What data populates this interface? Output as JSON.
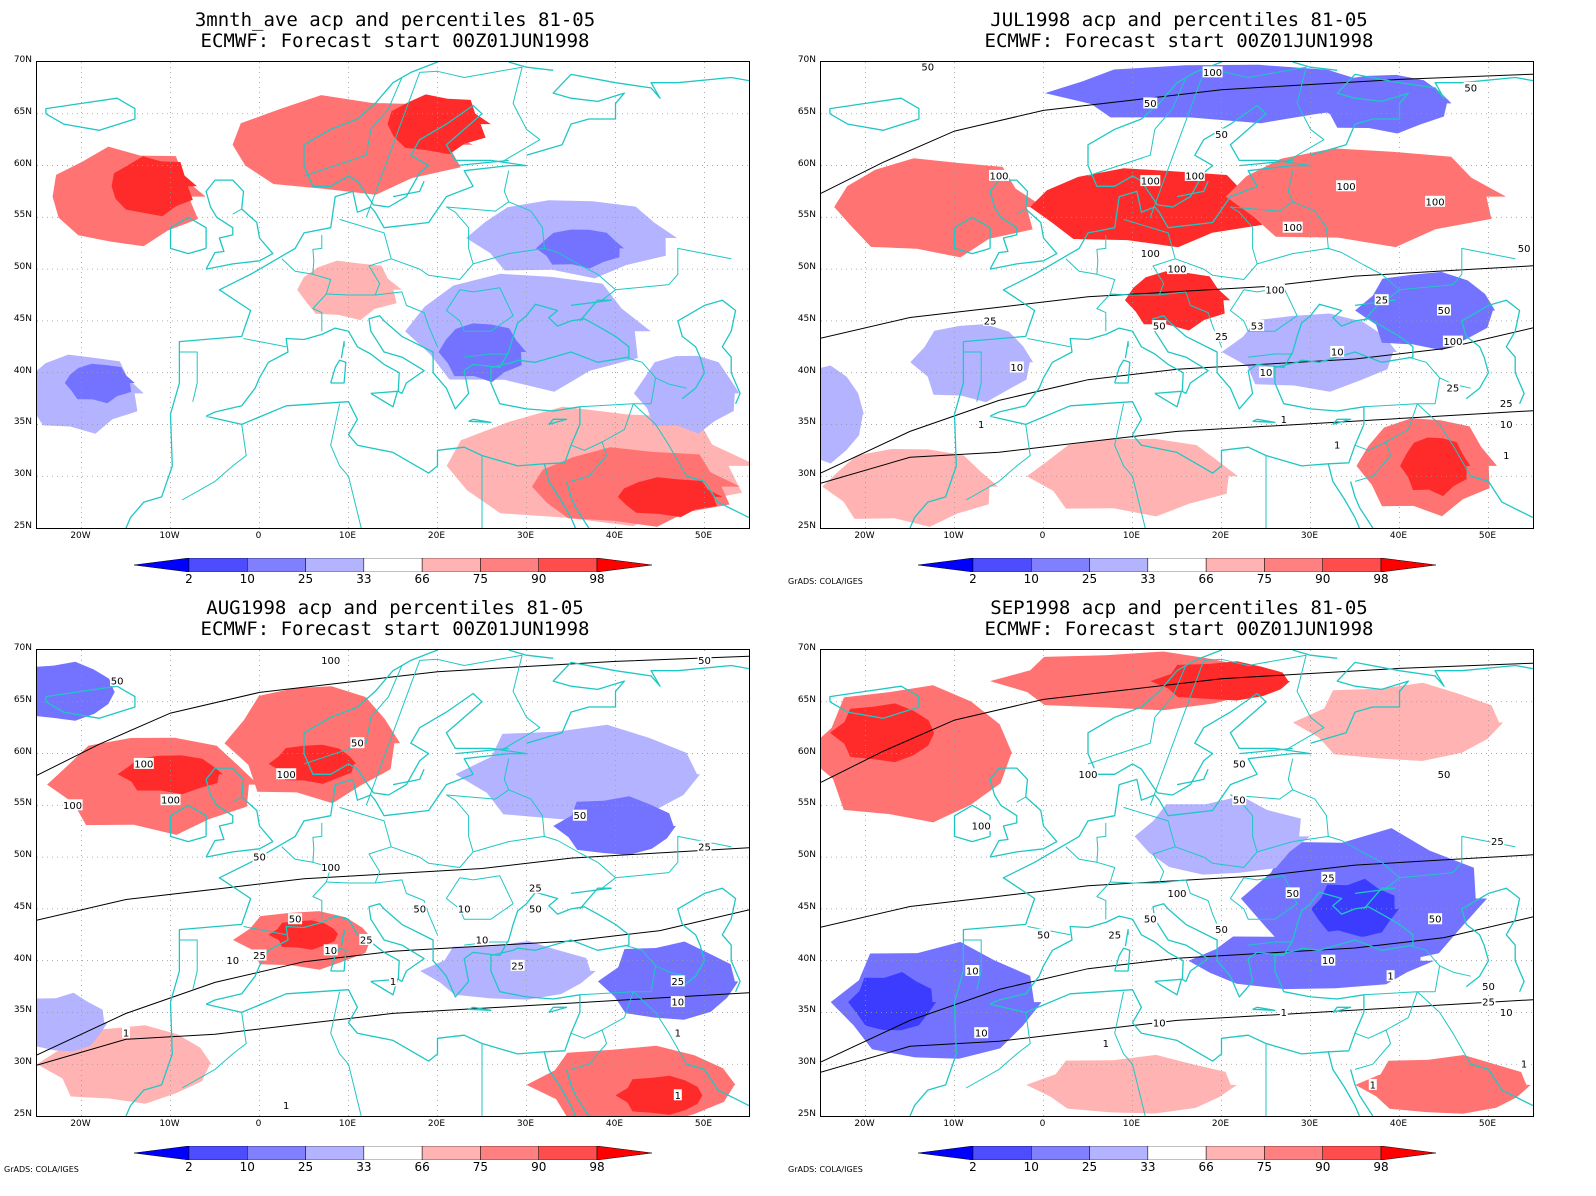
{
  "panels": [
    {
      "title_line1": "3mnth_ave acp and percentiles 81-05",
      "title_line2": "ECMWF: Forecast start 00Z01JUN1998",
      "credit": "",
      "contour_labels": [],
      "anomaly_regions": [
        {
          "category": "above",
          "level": 2,
          "lon": -15,
          "lat": 57,
          "rx": 9,
          "ry": 5
        },
        {
          "category": "above",
          "level": 3,
          "lon": -12,
          "lat": 58,
          "rx": 5,
          "ry": 3
        },
        {
          "category": "above",
          "level": 2,
          "lon": 10,
          "lat": 62,
          "rx": 14,
          "ry": 5
        },
        {
          "category": "above",
          "level": 3,
          "lon": 20,
          "lat": 64,
          "rx": 6,
          "ry": 3
        },
        {
          "category": "above",
          "level": 1,
          "lon": 38,
          "lat": 31,
          "rx": 18,
          "ry": 6
        },
        {
          "category": "above",
          "level": 2,
          "lon": 42,
          "lat": 29,
          "rx": 12,
          "ry": 4
        },
        {
          "category": "above",
          "level": 3,
          "lon": 46,
          "lat": 28,
          "rx": 6,
          "ry": 2
        },
        {
          "category": "above",
          "level": 1,
          "lon": 10,
          "lat": 48,
          "rx": 6,
          "ry": 3
        },
        {
          "category": "below",
          "level": 1,
          "lon": -20,
          "lat": 38,
          "rx": 7,
          "ry": 4
        },
        {
          "category": "below",
          "level": 2,
          "lon": -18,
          "lat": 39,
          "rx": 4,
          "ry": 2
        },
        {
          "category": "below",
          "level": 1,
          "lon": 30,
          "lat": 44,
          "rx": 14,
          "ry": 6
        },
        {
          "category": "below",
          "level": 2,
          "lon": 25,
          "lat": 42,
          "rx": 5,
          "ry": 3
        },
        {
          "category": "below",
          "level": 1,
          "lon": 35,
          "lat": 53,
          "rx": 12,
          "ry": 4
        },
        {
          "category": "below",
          "level": 2,
          "lon": 36,
          "lat": 52,
          "rx": 5,
          "ry": 2
        },
        {
          "category": "below",
          "level": 1,
          "lon": 48,
          "lat": 38,
          "rx": 6,
          "ry": 4
        }
      ]
    },
    {
      "title_line1": "JUL1998 acp and percentiles 81-05",
      "title_line2": "ECMWF: Forecast start 00Z01JUN1998",
      "credit": "GrADS: COLA/IGES",
      "contour_labels": [
        {
          "text": "50",
          "lon": -13,
          "lat": 69.5
        },
        {
          "text": "100",
          "lon": 19,
          "lat": 69
        },
        {
          "text": "50",
          "lon": 12,
          "lat": 66
        },
        {
          "text": "50",
          "lon": 48,
          "lat": 67.5
        },
        {
          "text": "50",
          "lon": 20,
          "lat": 63
        },
        {
          "text": "100",
          "lon": -5,
          "lat": 59
        },
        {
          "text": "100",
          "lon": 12,
          "lat": 58.5
        },
        {
          "text": "100",
          "lon": 17,
          "lat": 59
        },
        {
          "text": "100",
          "lon": 34,
          "lat": 58
        },
        {
          "text": "100",
          "lon": 44,
          "lat": 56.5
        },
        {
          "text": "100",
          "lon": 28,
          "lat": 54
        },
        {
          "text": "100",
          "lon": 12,
          "lat": 51.5
        },
        {
          "text": "100",
          "lon": 15,
          "lat": 50
        },
        {
          "text": "100",
          "lon": 26,
          "lat": 48
        },
        {
          "text": "50",
          "lon": 54,
          "lat": 52
        },
        {
          "text": "25",
          "lon": -6,
          "lat": 45
        },
        {
          "text": "50",
          "lon": 13,
          "lat": 44.5
        },
        {
          "text": "53",
          "lon": 24,
          "lat": 44.5
        },
        {
          "text": "25",
          "lon": 38,
          "lat": 47
        },
        {
          "text": "50",
          "lon": 45,
          "lat": 46
        },
        {
          "text": "25",
          "lon": 20,
          "lat": 43.5
        },
        {
          "text": "10",
          "lon": -3,
          "lat": 40.5
        },
        {
          "text": "100",
          "lon": 46,
          "lat": 43
        },
        {
          "text": "10",
          "lon": 33,
          "lat": 42
        },
        {
          "text": "10",
          "lon": 25,
          "lat": 40
        },
        {
          "text": "25",
          "lon": 46,
          "lat": 38.5
        },
        {
          "text": "25",
          "lon": 52,
          "lat": 37
        },
        {
          "text": "10",
          "lon": 52,
          "lat": 35
        },
        {
          "text": "1",
          "lon": -7,
          "lat": 35
        },
        {
          "text": "1",
          "lon": 27,
          "lat": 35.5
        },
        {
          "text": "1",
          "lon": 33,
          "lat": 33
        },
        {
          "text": "1",
          "lon": 52,
          "lat": 32
        }
      ],
      "anomaly_regions": [
        {
          "category": "above",
          "level": 2,
          "lon": -12,
          "lat": 56,
          "rx": 12,
          "ry": 5
        },
        {
          "category": "above",
          "level": 3,
          "lon": 12,
          "lat": 56,
          "rx": 14,
          "ry": 4
        },
        {
          "category": "above",
          "level": 2,
          "lon": 36,
          "lat": 57,
          "rx": 16,
          "ry": 5
        },
        {
          "category": "above",
          "level": 3,
          "lon": 15,
          "lat": 47,
          "rx": 6,
          "ry": 3
        },
        {
          "category": "above",
          "level": 2,
          "lon": 43,
          "lat": 31,
          "rx": 8,
          "ry": 5
        },
        {
          "category": "above",
          "level": 3,
          "lon": 44,
          "lat": 31,
          "rx": 4,
          "ry": 3
        },
        {
          "category": "above",
          "level": 1,
          "lon": -15,
          "lat": 29,
          "rx": 10,
          "ry": 4
        },
        {
          "category": "above",
          "level": 1,
          "lon": 10,
          "lat": 30,
          "rx": 12,
          "ry": 4
        },
        {
          "category": "below",
          "level": 2,
          "lon": 20,
          "lat": 67,
          "rx": 20,
          "ry": 3
        },
        {
          "category": "below",
          "level": 2,
          "lon": 38,
          "lat": 66,
          "rx": 8,
          "ry": 3
        },
        {
          "category": "below",
          "level": 1,
          "lon": -8,
          "lat": 41,
          "rx": 7,
          "ry": 4
        },
        {
          "category": "below",
          "level": 1,
          "lon": 30,
          "lat": 42,
          "rx": 10,
          "ry": 4
        },
        {
          "category": "below",
          "level": 2,
          "lon": 43,
          "lat": 46,
          "rx": 8,
          "ry": 4
        },
        {
          "category": "below",
          "level": 1,
          "lon": -25,
          "lat": 36,
          "rx": 5,
          "ry": 5
        }
      ]
    },
    {
      "title_line1": "AUG1998 acp and percentiles 81-05",
      "title_line2": "ECMWF: Forecast start 00Z01JUN1998",
      "credit": "GrADS: COLA/IGES",
      "contour_labels": [
        {
          "text": "50",
          "lon": -16,
          "lat": 67
        },
        {
          "text": "100",
          "lon": 8,
          "lat": 69
        },
        {
          "text": "50",
          "lon": 50,
          "lat": 69
        },
        {
          "text": "50",
          "lon": 11,
          "lat": 61
        },
        {
          "text": "100",
          "lon": -13,
          "lat": 59
        },
        {
          "text": "100",
          "lon": 3,
          "lat": 58
        },
        {
          "text": "100",
          "lon": -21,
          "lat": 55
        },
        {
          "text": "100",
          "lon": -10,
          "lat": 55.5
        },
        {
          "text": "50",
          "lon": 36,
          "lat": 54
        },
        {
          "text": "25",
          "lon": 50,
          "lat": 51
        },
        {
          "text": "50",
          "lon": 0,
          "lat": 50
        },
        {
          "text": "100",
          "lon": 8,
          "lat": 49
        },
        {
          "text": "25",
          "lon": 31,
          "lat": 47
        },
        {
          "text": "50",
          "lon": 18,
          "lat": 45
        },
        {
          "text": "10",
          "lon": 23,
          "lat": 45
        },
        {
          "text": "50",
          "lon": 31,
          "lat": 45
        },
        {
          "text": "50",
          "lon": 4,
          "lat": 44
        },
        {
          "text": "10",
          "lon": 25,
          "lat": 42
        },
        {
          "text": "25",
          "lon": 12,
          "lat": 42
        },
        {
          "text": "10",
          "lon": -3,
          "lat": 40
        },
        {
          "text": "25",
          "lon": 0,
          "lat": 40.5
        },
        {
          "text": "10",
          "lon": 8,
          "lat": 41
        },
        {
          "text": "25",
          "lon": 29,
          "lat": 39.5
        },
        {
          "text": "1",
          "lon": 15,
          "lat": 38
        },
        {
          "text": "25",
          "lon": 47,
          "lat": 38
        },
        {
          "text": "10",
          "lon": 47,
          "lat": 36
        },
        {
          "text": "1",
          "lon": -15,
          "lat": 33
        },
        {
          "text": "1",
          "lon": 47,
          "lat": 33
        },
        {
          "text": "1",
          "lon": 3,
          "lat": 26
        },
        {
          "text": "1",
          "lon": 47,
          "lat": 27
        }
      ],
      "anomaly_regions": [
        {
          "category": "above",
          "level": 2,
          "lon": -12,
          "lat": 57,
          "rx": 12,
          "ry": 5
        },
        {
          "category": "above",
          "level": 3,
          "lon": -10,
          "lat": 58,
          "rx": 6,
          "ry": 2
        },
        {
          "category": "above",
          "level": 2,
          "lon": 6,
          "lat": 61,
          "rx": 10,
          "ry": 6
        },
        {
          "category": "above",
          "level": 3,
          "lon": 6,
          "lat": 59,
          "rx": 5,
          "ry": 2
        },
        {
          "category": "above",
          "level": 2,
          "lon": 5,
          "lat": 42,
          "rx": 8,
          "ry": 3
        },
        {
          "category": "above",
          "level": 3,
          "lon": 5,
          "lat": 42.5,
          "rx": 4,
          "ry": 1.5
        },
        {
          "category": "above",
          "level": 1,
          "lon": -15,
          "lat": 30,
          "rx": 10,
          "ry": 4
        },
        {
          "category": "above",
          "level": 2,
          "lon": 42,
          "lat": 28,
          "rx": 12,
          "ry": 4
        },
        {
          "category": "above",
          "level": 3,
          "lon": 45,
          "lat": 27,
          "rx": 5,
          "ry": 2
        },
        {
          "category": "below",
          "level": 2,
          "lon": -22,
          "lat": 66,
          "rx": 6,
          "ry": 3
        },
        {
          "category": "below",
          "level": 1,
          "lon": 36,
          "lat": 58,
          "rx": 14,
          "ry": 5
        },
        {
          "category": "below",
          "level": 2,
          "lon": 40,
          "lat": 53,
          "rx": 7,
          "ry": 3
        },
        {
          "category": "below",
          "level": 2,
          "lon": 46,
          "lat": 38,
          "rx": 8,
          "ry": 4
        },
        {
          "category": "below",
          "level": 1,
          "lon": 28,
          "lat": 39,
          "rx": 10,
          "ry": 3
        },
        {
          "category": "below",
          "level": 1,
          "lon": -22,
          "lat": 34,
          "rx": 5,
          "ry": 3
        }
      ]
    },
    {
      "title_line1": "SEP1998 acp and percentiles 81-05",
      "title_line2": "ECMWF: Forecast start 00Z01JUN1998",
      "credit": "GrADS: COLA/IGES",
      "contour_labels": [
        {
          "text": "100",
          "lon": 5,
          "lat": 58
        },
        {
          "text": "50",
          "lon": 22,
          "lat": 59
        },
        {
          "text": "50",
          "lon": 22,
          "lat": 55.5
        },
        {
          "text": "50",
          "lon": 45,
          "lat": 58
        },
        {
          "text": "100",
          "lon": -7,
          "lat": 53
        },
        {
          "text": "25",
          "lon": 51,
          "lat": 51.5
        },
        {
          "text": "25",
          "lon": 32,
          "lat": 48
        },
        {
          "text": "50",
          "lon": 28,
          "lat": 46.5
        },
        {
          "text": "100",
          "lon": 15,
          "lat": 46.5
        },
        {
          "text": "50",
          "lon": 44,
          "lat": 44
        },
        {
          "text": "50",
          "lon": 12,
          "lat": 44
        },
        {
          "text": "50",
          "lon": 0,
          "lat": 42.5
        },
        {
          "text": "25",
          "lon": 8,
          "lat": 42.5
        },
        {
          "text": "50",
          "lon": 20,
          "lat": 43
        },
        {
          "text": "10",
          "lon": -8,
          "lat": 39
        },
        {
          "text": "10",
          "lon": 32,
          "lat": 40
        },
        {
          "text": "1",
          "lon": 39,
          "lat": 38.5
        },
        {
          "text": "50",
          "lon": 50,
          "lat": 37.5
        },
        {
          "text": "25",
          "lon": 50,
          "lat": 36
        },
        {
          "text": "10",
          "lon": 52,
          "lat": 35
        },
        {
          "text": "10",
          "lon": 13,
          "lat": 34
        },
        {
          "text": "10",
          "lon": -7,
          "lat": 33
        },
        {
          "text": "1",
          "lon": 27,
          "lat": 35
        },
        {
          "text": "1",
          "lon": 7,
          "lat": 32
        },
        {
          "text": "1",
          "lon": 37,
          "lat": 28
        },
        {
          "text": "1",
          "lon": 54,
          "lat": 30
        }
      ],
      "anomaly_regions": [
        {
          "category": "above",
          "level": 2,
          "lon": -15,
          "lat": 60,
          "rx": 12,
          "ry": 7
        },
        {
          "category": "above",
          "level": 3,
          "lon": -18,
          "lat": 62,
          "rx": 6,
          "ry": 3
        },
        {
          "category": "above",
          "level": 2,
          "lon": 10,
          "lat": 67,
          "rx": 16,
          "ry": 3
        },
        {
          "category": "above",
          "level": 3,
          "lon": 20,
          "lat": 67,
          "rx": 8,
          "ry": 2
        },
        {
          "category": "above",
          "level": 1,
          "lon": 40,
          "lat": 63,
          "rx": 12,
          "ry": 4
        },
        {
          "category": "above",
          "level": 2,
          "lon": 45,
          "lat": 28,
          "rx": 10,
          "ry": 3
        },
        {
          "category": "above",
          "level": 1,
          "lon": 10,
          "lat": 28,
          "rx": 12,
          "ry": 3
        },
        {
          "category": "below",
          "level": 2,
          "lon": -12,
          "lat": 36,
          "rx": 12,
          "ry": 6
        },
        {
          "category": "below",
          "level": 3,
          "lon": -17,
          "lat": 36,
          "rx": 5,
          "ry": 3
        },
        {
          "category": "below",
          "level": 2,
          "lon": 36,
          "lat": 46,
          "rx": 14,
          "ry": 7
        },
        {
          "category": "below",
          "level": 3,
          "lon": 35,
          "lat": 45,
          "rx": 5,
          "ry": 3
        },
        {
          "category": "below",
          "level": 2,
          "lon": 30,
          "lat": 40,
          "rx": 14,
          "ry": 3
        },
        {
          "category": "below",
          "level": 1,
          "lon": 20,
          "lat": 52,
          "rx": 10,
          "ry": 4
        }
      ]
    }
  ],
  "map": {
    "lon_min": -25,
    "lon_max": 55,
    "lat_min": 25,
    "lat_max": 70,
    "lat_ticks": [
      "70N",
      "65N",
      "60N",
      "55N",
      "50N",
      "45N",
      "40N",
      "35N",
      "30N",
      "25N"
    ],
    "lon_ticks": [
      "20W",
      "10W",
      "0",
      "10E",
      "20E",
      "30E",
      "40E",
      "50E"
    ]
  },
  "colorbar": {
    "labels": [
      "2",
      "10",
      "25",
      "33",
      "66",
      "75",
      "90",
      "98"
    ],
    "colors": [
      "#0000ff",
      "#4d4dff",
      "#8080ff",
      "#b3b3ff",
      "#ffffff",
      "#ffb3b3",
      "#ff8080",
      "#ff4d4d",
      "#ff0000"
    ]
  },
  "colors": {
    "coast": "#1fc7c4",
    "below": [
      "#b3b3ff",
      "#7373ff",
      "#3c3cff"
    ],
    "above": [
      "#ffb3b3",
      "#ff7373",
      "#ff2a2a"
    ],
    "contour": "#000000"
  }
}
